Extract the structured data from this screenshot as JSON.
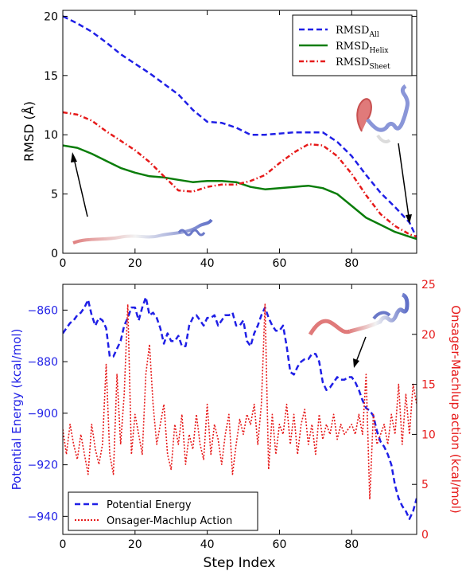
{
  "chart_data": [
    {
      "type": "line",
      "ylabel": "RMSD (Å)",
      "xlabel": "",
      "xlim": [
        0,
        98
      ],
      "ylim": [
        0,
        20.5
      ],
      "xticks": [
        0,
        20,
        40,
        60,
        80
      ],
      "yticks": [
        0,
        5,
        10,
        15,
        20
      ],
      "legend_position": "top-right",
      "series": [
        {
          "name": "RMSD_All",
          "label_main": "RMSD",
          "label_sub": "All",
          "color": "#1f1fe6",
          "style": "dashed",
          "x": [
            0,
            4,
            8,
            12,
            16,
            20,
            24,
            28,
            32,
            36,
            40,
            44,
            48,
            52,
            56,
            60,
            64,
            68,
            72,
            76,
            80,
            84,
            88,
            92,
            96,
            98
          ],
          "y": [
            20.0,
            19.4,
            18.7,
            17.8,
            16.8,
            16.0,
            15.2,
            14.3,
            13.4,
            12.1,
            11.1,
            11.0,
            10.6,
            10.0,
            10.0,
            10.1,
            10.2,
            10.2,
            10.2,
            9.4,
            8.2,
            6.6,
            5.1,
            3.9,
            2.6,
            1.3
          ]
        },
        {
          "name": "RMSD_Helix",
          "label_main": "RMSD",
          "label_sub": "Helix",
          "color": "#0a7d0a",
          "style": "solid",
          "x": [
            0,
            4,
            8,
            12,
            16,
            20,
            24,
            28,
            32,
            36,
            40,
            44,
            48,
            52,
            56,
            60,
            64,
            68,
            72,
            76,
            80,
            84,
            88,
            92,
            96,
            98
          ],
          "y": [
            9.1,
            8.9,
            8.4,
            7.8,
            7.2,
            6.8,
            6.5,
            6.4,
            6.2,
            6.0,
            6.1,
            6.1,
            6.0,
            5.6,
            5.4,
            5.5,
            5.6,
            5.7,
            5.5,
            5.0,
            4.0,
            3.0,
            2.4,
            1.8,
            1.4,
            1.2
          ]
        },
        {
          "name": "RMSD_Sheet",
          "label_main": "RMSD",
          "label_sub": "Sheet",
          "color": "#e61a1a",
          "style": "dashdot",
          "x": [
            0,
            4,
            8,
            12,
            16,
            20,
            24,
            28,
            32,
            36,
            40,
            44,
            48,
            52,
            56,
            60,
            64,
            68,
            72,
            76,
            80,
            84,
            88,
            92,
            96,
            98
          ],
          "y": [
            11.9,
            11.7,
            11.2,
            10.3,
            9.5,
            8.7,
            7.7,
            6.5,
            5.3,
            5.2,
            5.6,
            5.8,
            5.8,
            6.1,
            6.6,
            7.6,
            8.5,
            9.2,
            9.1,
            8.2,
            6.7,
            4.9,
            3.3,
            2.3,
            1.6,
            1.4
          ]
        }
      ]
    },
    {
      "type": "line",
      "xlabel": "Step Index",
      "ylabel": "Potential Energy (kcal/mol)",
      "y2label": "Onsager-Machlup action (kcal/mol)",
      "xlim": [
        0,
        98
      ],
      "ylim": [
        -947,
        -850
      ],
      "y2lim": [
        0,
        25
      ],
      "xticks": [
        0,
        20,
        40,
        60,
        80
      ],
      "yticks": [
        -940,
        -920,
        -900,
        -880,
        -860
      ],
      "y2ticks": [
        0,
        5,
        10,
        15,
        20,
        25
      ],
      "legend_position": "bottom-left",
      "series": [
        {
          "name": "Potential Energy",
          "axis": "left",
          "color": "#1f1fe6",
          "style": "dashed",
          "x": [
            0,
            2,
            3,
            4,
            5,
            6,
            7,
            8,
            9,
            10,
            11,
            12,
            13,
            14,
            15,
            16,
            17,
            18,
            19,
            20,
            21,
            22,
            23,
            24,
            25,
            26,
            27,
            28,
            29,
            30,
            31,
            32,
            33,
            34,
            35,
            36,
            37,
            38,
            39,
            40,
            41,
            42,
            43,
            44,
            45,
            46,
            47,
            48,
            49,
            50,
            51,
            52,
            53,
            54,
            55,
            56,
            57,
            58,
            59,
            60,
            61,
            62,
            63,
            64,
            65,
            66,
            67,
            68,
            69,
            70,
            71,
            72,
            73,
            74,
            75,
            76,
            77,
            78,
            79,
            80,
            81,
            82,
            83,
            84,
            85,
            86,
            87,
            88,
            89,
            90,
            91,
            92,
            93,
            94,
            95,
            96,
            97,
            98
          ],
          "y": [
            -869,
            -865,
            -864,
            -862,
            -861,
            -859,
            -856,
            -862,
            -866,
            -863,
            -864,
            -867,
            -878,
            -878,
            -875,
            -872,
            -866,
            -863,
            -859,
            -859,
            -864,
            -859,
            -855,
            -862,
            -861,
            -863,
            -867,
            -873,
            -869,
            -872,
            -872,
            -870,
            -874,
            -874,
            -866,
            -863,
            -862,
            -864,
            -866,
            -863,
            -863,
            -862,
            -866,
            -864,
            -862,
            -862,
            -861,
            -866,
            -866,
            -864,
            -872,
            -874,
            -869,
            -866,
            -862,
            -859,
            -863,
            -866,
            -868,
            -868,
            -866,
            -874,
            -884,
            -885,
            -882,
            -880,
            -879,
            -879,
            -877,
            -877,
            -880,
            -888,
            -891,
            -890,
            -888,
            -886,
            -887,
            -887,
            -886,
            -886,
            -888,
            -891,
            -895,
            -898,
            -899,
            -901,
            -907,
            -911,
            -913,
            -916,
            -920,
            -928,
            -933,
            -936,
            -938,
            -941,
            -938,
            -933
          ]
        },
        {
          "name": "Onsager-Machlup Action",
          "axis": "right",
          "color": "#e61a1a",
          "style": "dotted",
          "x": [
            0,
            1,
            2,
            3,
            4,
            5,
            6,
            7,
            8,
            9,
            10,
            11,
            12,
            13,
            14,
            15,
            16,
            17,
            18,
            19,
            20,
            21,
            22,
            23,
            24,
            25,
            26,
            27,
            28,
            29,
            30,
            31,
            32,
            33,
            34,
            35,
            36,
            37,
            38,
            39,
            40,
            41,
            42,
            43,
            44,
            45,
            46,
            47,
            48,
            49,
            50,
            51,
            52,
            53,
            54,
            55,
            56,
            57,
            58,
            59,
            60,
            61,
            62,
            63,
            64,
            65,
            66,
            67,
            68,
            69,
            70,
            71,
            72,
            73,
            74,
            75,
            76,
            77,
            78,
            79,
            80,
            81,
            82,
            83,
            84,
            85,
            86,
            87,
            88,
            89,
            90,
            91,
            92,
            93,
            94,
            95,
            96,
            97,
            98
          ],
          "y": [
            10.5,
            8,
            11,
            9,
            7.5,
            10,
            8,
            6,
            11,
            8.5,
            7,
            9,
            17,
            8,
            6,
            16,
            9,
            14,
            23,
            8,
            12,
            10,
            8,
            16,
            19,
            13,
            9,
            11,
            13,
            8,
            6.5,
            11,
            9,
            12,
            7,
            10,
            8.5,
            12,
            9,
            7.5,
            13,
            8,
            11,
            9.5,
            7,
            10,
            12,
            6,
            9,
            11.5,
            10,
            12,
            11,
            13,
            9,
            13,
            23,
            6.5,
            12,
            8,
            11,
            10,
            13,
            9,
            12,
            8,
            11,
            12.5,
            9,
            11,
            8,
            12,
            9.5,
            11,
            10,
            12,
            9.5,
            11,
            10,
            10.5,
            11,
            10,
            12,
            10,
            16,
            3.5,
            12,
            9,
            10,
            11,
            9,
            12,
            10,
            15,
            9,
            14,
            10,
            15,
            13
          ]
        }
      ]
    }
  ]
}
